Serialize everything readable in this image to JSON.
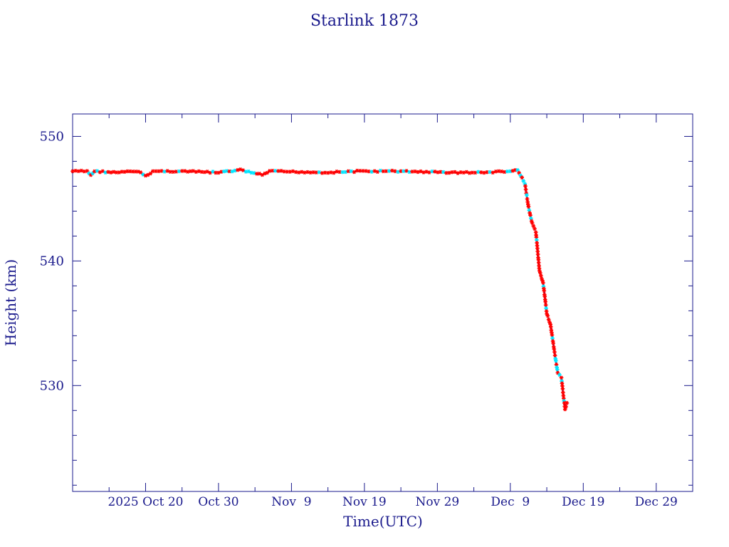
{
  "chart_data": {
    "type": "line",
    "title": "Starlink 1873",
    "xlabel": "Time(UTC)",
    "ylabel": "Height (km)",
    "x_axis": "date",
    "xlim": [
      "2025-10-10",
      "2026-01-03"
    ],
    "ylim": [
      521.5,
      551.8
    ],
    "x_ticks": [
      {
        "date": "2025-10-20",
        "label": "2025 Oct 20"
      },
      {
        "date": "2025-10-30",
        "label": "Oct 30"
      },
      {
        "date": "2025-11-09",
        "label": "Nov  9"
      },
      {
        "date": "2025-11-19",
        "label": "Nov 19"
      },
      {
        "date": "2025-11-29",
        "label": "Nov 29"
      },
      {
        "date": "2025-12-09",
        "label": "Dec  9"
      },
      {
        "date": "2025-12-19",
        "label": "Dec 19"
      },
      {
        "date": "2025-12-29",
        "label": "Dec 29"
      }
    ],
    "y_ticks": [
      530,
      540,
      550
    ],
    "grid": false,
    "colors": {
      "axis": "#1a1a8c",
      "line": "#00008b",
      "marker_a": "#ff0000",
      "marker_b": "#00e5ff"
    },
    "series": [
      {
        "values": [
          {
            "x": "2025-10-10",
            "y": 547.2
          },
          {
            "x": "2025-10-12",
            "y": 547.2
          },
          {
            "x": "2025-10-12 12:00",
            "y": 546.9
          },
          {
            "x": "2025-10-13",
            "y": 547.2
          },
          {
            "x": "2025-10-16",
            "y": 547.1
          },
          {
            "x": "2025-10-19",
            "y": 547.2
          },
          {
            "x": "2025-10-20",
            "y": 546.8
          },
          {
            "x": "2025-10-21",
            "y": 547.2
          },
          {
            "x": "2025-10-25",
            "y": 547.2
          },
          {
            "x": "2025-10-30",
            "y": 547.1
          },
          {
            "x": "2025-11-02",
            "y": 547.3
          },
          {
            "x": "2025-11-05",
            "y": 546.9
          },
          {
            "x": "2025-11-06",
            "y": 547.2
          },
          {
            "x": "2025-11-14",
            "y": 547.1
          },
          {
            "x": "2025-11-18",
            "y": 547.2
          },
          {
            "x": "2025-11-24",
            "y": 547.2
          },
          {
            "x": "2025-12-01",
            "y": 547.1
          },
          {
            "x": "2025-12-05",
            "y": 547.1
          },
          {
            "x": "2025-12-09",
            "y": 547.2
          },
          {
            "x": "2025-12-10",
            "y": 547.3
          },
          {
            "x": "2025-12-11",
            "y": 546.2
          },
          {
            "x": "2025-12-11 12:00",
            "y": 544.3
          },
          {
            "x": "2025-12-12",
            "y": 543.0
          },
          {
            "x": "2025-12-12 12:00",
            "y": 542.3
          },
          {
            "x": "2025-12-13",
            "y": 539.2
          },
          {
            "x": "2025-12-13 12:00",
            "y": 538.2
          },
          {
            "x": "2025-12-14",
            "y": 535.8
          },
          {
            "x": "2025-12-14 12:00",
            "y": 534.9
          },
          {
            "x": "2025-12-15",
            "y": 532.9
          },
          {
            "x": "2025-12-15 12:00",
            "y": 531.0
          },
          {
            "x": "2025-12-16",
            "y": 530.6
          },
          {
            "x": "2025-12-16 12:00",
            "y": 528.1
          },
          {
            "x": "2025-12-16 18:00",
            "y": 528.6
          }
        ]
      }
    ]
  }
}
